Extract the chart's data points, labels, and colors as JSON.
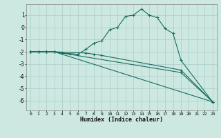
{
  "xlabel": "Humidex (Indice chaleur)",
  "ylabel": "",
  "xlim": [
    -0.5,
    23.5
  ],
  "ylim": [
    -6.8,
    1.9
  ],
  "yticks": [
    1,
    0,
    -1,
    -2,
    -3,
    -4,
    -5,
    -6
  ],
  "xticks": [
    0,
    1,
    2,
    3,
    4,
    5,
    6,
    7,
    8,
    9,
    10,
    11,
    12,
    13,
    14,
    15,
    16,
    17,
    18,
    19,
    20,
    21,
    22,
    23
  ],
  "background_color": "#cce8e0",
  "grid_color": "#aacccc",
  "line_color": "#1a6b5e",
  "series": [
    {
      "x": [
        0,
        1,
        2,
        3,
        4,
        5,
        6,
        7,
        8,
        9,
        10,
        11,
        12,
        13,
        14,
        15,
        16,
        17,
        18,
        19,
        23
      ],
      "y": [
        -2,
        -2,
        -2,
        -2,
        -2.1,
        -2.15,
        -2.2,
        -1.8,
        -1.3,
        -1.1,
        -0.2,
        0.0,
        0.9,
        1.0,
        1.5,
        1.0,
        0.8,
        -0.1,
        -0.5,
        -2.7,
        -6.1
      ]
    },
    {
      "x": [
        0,
        1,
        2,
        3,
        7,
        8,
        9,
        19,
        23
      ],
      "y": [
        -2,
        -2,
        -2,
        -2,
        -2.1,
        -2.2,
        -2.3,
        -3.5,
        -6.1
      ]
    },
    {
      "x": [
        0,
        1,
        2,
        3,
        19,
        23
      ],
      "y": [
        -2,
        -2,
        -2,
        -2,
        -3.7,
        -6.1
      ]
    },
    {
      "x": [
        0,
        1,
        2,
        3,
        23
      ],
      "y": [
        -2,
        -2,
        -2,
        -2,
        -6.1
      ]
    }
  ]
}
